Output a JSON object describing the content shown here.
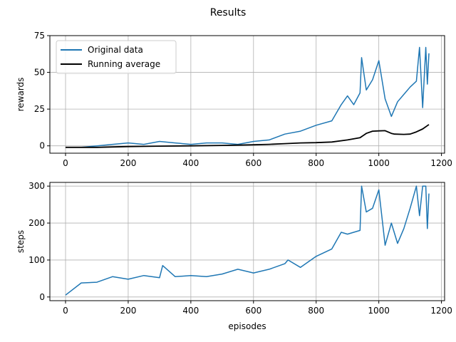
{
  "title": "Results",
  "chart_data": [
    {
      "type": "line",
      "ylabel": "rewards",
      "xlabel": "",
      "xlim": [
        -50,
        1210
      ],
      "ylim": [
        -5,
        75
      ],
      "xticks": [
        0,
        200,
        400,
        600,
        800,
        1000,
        1200
      ],
      "yticks": [
        0,
        25,
        50,
        75
      ],
      "grid": true,
      "legend": "upper-left",
      "series": [
        {
          "name": "Original data",
          "color": "#1f77b4",
          "x": [
            0,
            50,
            100,
            150,
            200,
            250,
            300,
            350,
            400,
            450,
            500,
            550,
            600,
            650,
            700,
            750,
            800,
            850,
            880,
            900,
            920,
            940,
            945,
            960,
            980,
            1000,
            1020,
            1040,
            1060,
            1080,
            1100,
            1120,
            1130,
            1140,
            1150,
            1155,
            1160
          ],
          "y": [
            -1,
            -1,
            0,
            1,
            2,
            1,
            3,
            2,
            1,
            2,
            2,
            1,
            3,
            4,
            8,
            10,
            14,
            17,
            28,
            34,
            28,
            36,
            60,
            38,
            45,
            58,
            32,
            20,
            30,
            35,
            40,
            44,
            67,
            26,
            67,
            42,
            63
          ]
        },
        {
          "name": "Running average",
          "color": "#000000",
          "x": [
            0,
            100,
            200,
            300,
            400,
            500,
            600,
            650,
            700,
            750,
            800,
            850,
            900,
            940,
            960,
            980,
            1000,
            1020,
            1040,
            1050,
            1080,
            1100,
            1120,
            1140,
            1160
          ],
          "y": [
            -1,
            -1,
            -0.5,
            -0.2,
            0,
            0.3,
            0.7,
            1.0,
            1.5,
            2.0,
            2.2,
            2.6,
            4.0,
            5.5,
            8.5,
            10.0,
            10.2,
            10.3,
            8.5,
            8.0,
            7.8,
            8.0,
            9.5,
            11.5,
            14.5
          ]
        }
      ]
    },
    {
      "type": "line",
      "ylabel": "steps",
      "xlabel": "episodes",
      "xlim": [
        -50,
        1210
      ],
      "ylim": [
        -10,
        310
      ],
      "xticks": [
        0,
        200,
        400,
        600,
        800,
        1000,
        1200
      ],
      "yticks": [
        0,
        100,
        200,
        300
      ],
      "grid": true,
      "series": [
        {
          "name": "steps",
          "color": "#1f77b4",
          "x": [
            0,
            50,
            100,
            150,
            200,
            250,
            300,
            310,
            350,
            400,
            450,
            500,
            550,
            600,
            650,
            700,
            710,
            750,
            800,
            850,
            880,
            900,
            940,
            945,
            960,
            980,
            1000,
            1020,
            1040,
            1060,
            1080,
            1100,
            1120,
            1130,
            1140,
            1150,
            1155,
            1160
          ],
          "y": [
            5,
            38,
            40,
            55,
            48,
            58,
            52,
            85,
            55,
            58,
            55,
            62,
            75,
            65,
            75,
            90,
            100,
            80,
            110,
            130,
            175,
            170,
            180,
            300,
            230,
            240,
            290,
            140,
            200,
            145,
            185,
            240,
            300,
            220,
            300,
            300,
            185,
            280
          ]
        }
      ]
    }
  ]
}
